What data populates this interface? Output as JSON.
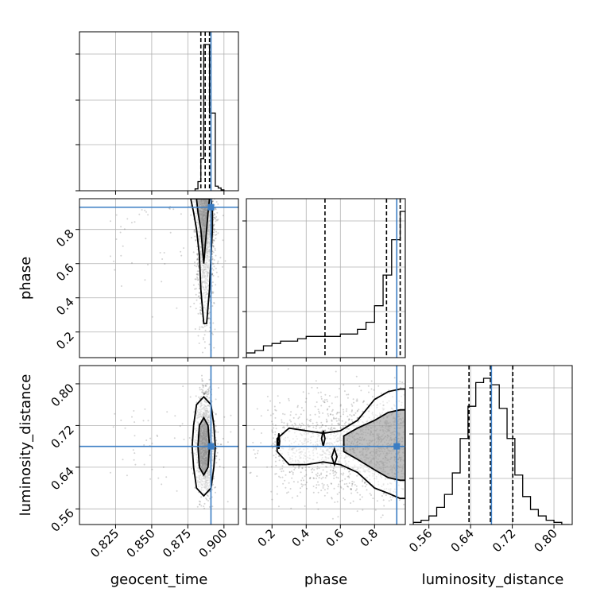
{
  "colors": {
    "truth": "#3b7dc3",
    "hist": "#000000",
    "points": "#555555",
    "grid": "#b0b0b0"
  },
  "chart_data": {
    "type": "corner",
    "parameters": [
      {
        "key": "geocent_time",
        "label": "geocent_time",
        "range": [
          0.8,
          0.91
        ],
        "ticks": [
          0.825,
          0.85,
          0.875,
          0.9
        ],
        "tick_labels": [
          "0.825",
          "0.850",
          "0.875",
          "0.900"
        ],
        "truth": 0.891,
        "quantiles": [
          0.884,
          0.887,
          0.89
        ]
      },
      {
        "key": "phase",
        "label": "phase",
        "range": [
          0.05,
          0.98
        ],
        "ticks": [
          0.2,
          0.4,
          0.6,
          0.8
        ],
        "tick_labels": [
          "0.2",
          "0.4",
          "0.6",
          "0.8"
        ],
        "truth": 0.93,
        "quantiles": [
          0.51,
          0.87,
          0.95
        ]
      },
      {
        "key": "luminosity_distance",
        "label": "luminosity_distance",
        "range": [
          0.53,
          0.835
        ],
        "ticks": [
          0.56,
          0.64,
          0.72,
          0.8
        ],
        "tick_labels": [
          "0.56",
          "0.64",
          "0.72",
          "0.80"
        ],
        "truth": 0.68,
        "quantiles": [
          0.637,
          0.678,
          0.721
        ]
      }
    ],
    "histograms": {
      "geocent_time": {
        "edges": [
          0.88,
          0.882,
          0.884,
          0.886,
          0.888,
          0.89,
          0.892,
          0.894,
          0.896,
          0.898,
          0.9
        ],
        "counts": [
          2,
          10,
          35,
          160,
          160,
          85,
          85,
          5,
          3,
          1
        ]
      },
      "phase": {
        "edges": [
          0.05,
          0.1,
          0.15,
          0.2,
          0.25,
          0.3,
          0.35,
          0.4,
          0.45,
          0.5,
          0.55,
          0.6,
          0.65,
          0.7,
          0.75,
          0.8,
          0.85,
          0.9,
          0.95,
          0.98
        ],
        "counts": [
          2,
          3,
          5,
          6,
          7,
          7,
          8,
          9,
          9,
          9,
          9,
          10,
          10,
          12,
          15,
          22,
          35,
          50,
          62
        ]
      },
      "luminosity_distance": {
        "edges": [
          0.53,
          0.545,
          0.56,
          0.575,
          0.59,
          0.605,
          0.62,
          0.635,
          0.65,
          0.665,
          0.68,
          0.695,
          0.71,
          0.725,
          0.74,
          0.755,
          0.77,
          0.785,
          0.8,
          0.815,
          0.83
        ],
        "counts": [
          1,
          2,
          4,
          8,
          14,
          24,
          40,
          55,
          66,
          68,
          65,
          54,
          40,
          23,
          13,
          7,
          4,
          2,
          1,
          0
        ]
      }
    },
    "pairs": [
      {
        "x": "geocent_time",
        "y": "phase",
        "contours": [
          {
            "level": "outer",
            "x": [
              0.877,
              0.879,
              0.881,
              0.883,
              0.884,
              0.886,
              0.888,
              0.89,
              0.891,
              0.892,
              0.892,
              0.891,
              0.89,
              0.889,
              0.886,
              0.884,
              0.882,
              0.88,
              0.878,
              0.877
            ],
            "y": [
              0.98,
              0.9,
              0.8,
              0.65,
              0.45,
              0.25,
              0.25,
              0.45,
              0.65,
              0.8,
              0.9,
              0.98,
              0.98,
              0.98,
              0.98,
              0.98,
              0.98,
              0.98,
              0.98,
              0.98
            ]
          },
          {
            "level": "inner",
            "x": [
              0.881,
              0.882,
              0.884,
              0.886,
              0.888,
              0.889,
              0.89,
              0.889,
              0.888,
              0.886,
              0.884,
              0.882
            ],
            "y": [
              0.98,
              0.9,
              0.8,
              0.6,
              0.8,
              0.9,
              0.98,
              0.98,
              0.98,
              0.98,
              0.98,
              0.98
            ]
          }
        ]
      },
      {
        "x": "geocent_time",
        "y": "luminosity_distance",
        "contours": [
          {
            "level": "outer",
            "x": [
              0.886,
              0.881,
              0.879,
              0.878,
              0.879,
              0.881,
              0.886,
              0.891,
              0.893,
              0.894,
              0.893,
              0.891
            ],
            "y": [
              0.775,
              0.76,
              0.72,
              0.68,
              0.64,
              0.6,
              0.585,
              0.6,
              0.64,
              0.68,
              0.72,
              0.76
            ]
          },
          {
            "level": "inner",
            "x": [
              0.886,
              0.883,
              0.882,
              0.883,
              0.886,
              0.889,
              0.89,
              0.889
            ],
            "y": [
              0.735,
              0.72,
              0.68,
              0.64,
              0.625,
              0.64,
              0.68,
              0.72
            ]
          }
        ]
      },
      {
        "x": "phase",
        "y": "luminosity_distance",
        "contours": [
          {
            "level": "outer",
            "x": [
              0.23,
              0.3,
              0.4,
              0.5,
              0.6,
              0.7,
              0.8,
              0.88,
              0.95,
              0.98,
              0.98,
              0.95,
              0.88,
              0.8,
              0.7,
              0.6,
              0.5,
              0.4,
              0.3,
              0.23
            ],
            "y": [
              0.695,
              0.715,
              0.71,
              0.705,
              0.71,
              0.73,
              0.77,
              0.785,
              0.79,
              0.79,
              0.58,
              0.58,
              0.59,
              0.6,
              0.63,
              0.645,
              0.65,
              0.645,
              0.645,
              0.67
            ]
          },
          {
            "level": "inner",
            "x": [
              0.7,
              0.8,
              0.88,
              0.95,
              0.98,
              0.98,
              0.95,
              0.88,
              0.8,
              0.7,
              0.62,
              0.62
            ],
            "y": [
              0.715,
              0.73,
              0.745,
              0.75,
              0.75,
              0.615,
              0.615,
              0.62,
              0.635,
              0.655,
              0.67,
              0.7
            ]
          },
          {
            "level": "island",
            "x": [
              0.235,
              0.24,
              0.245,
              0.24
            ],
            "y": [
              0.69,
              0.675,
              0.69,
              0.705
            ]
          },
          {
            "level": "island",
            "x": [
              0.49,
              0.5,
              0.51,
              0.5
            ],
            "y": [
              0.695,
              0.68,
              0.695,
              0.71
            ]
          },
          {
            "level": "island",
            "x": [
              0.55,
              0.565,
              0.58,
              0.565
            ],
            "y": [
              0.66,
              0.645,
              0.66,
              0.675
            ]
          }
        ]
      }
    ]
  }
}
